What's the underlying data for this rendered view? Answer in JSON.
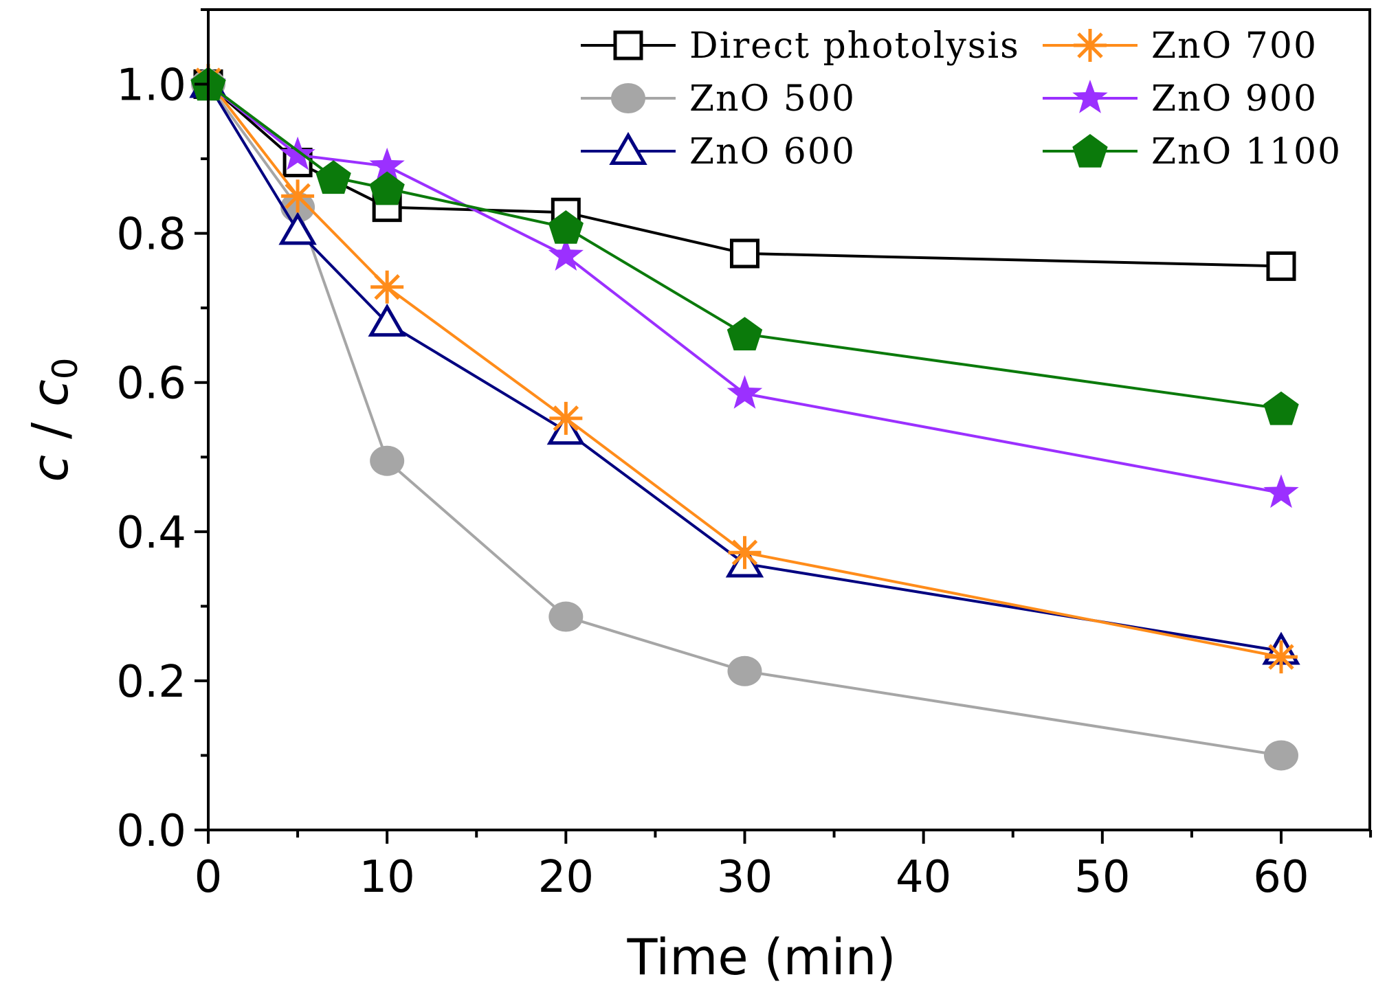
{
  "chart_data": {
    "type": "line",
    "title": "",
    "xlabel": "Time (min)",
    "ylabel_main": "c",
    "ylabel_sep": " / ",
    "ylabel_denom": "c",
    "ylabel_sub": "0",
    "xlim": [
      0,
      65
    ],
    "ylim": [
      0,
      1.1
    ],
    "x_ticks": [
      0,
      10,
      20,
      30,
      40,
      50,
      60
    ],
    "x_tick_labels": [
      "0",
      "10",
      "20",
      "30",
      "40",
      "50",
      "60"
    ],
    "y_ticks": [
      0.0,
      0.2,
      0.4,
      0.6,
      0.8,
      1.0
    ],
    "y_tick_labels": [
      "0.0",
      "0.2",
      "0.4",
      "0.6",
      "0.8",
      "1.0"
    ],
    "grid": false,
    "legend_position": "top-right",
    "series": [
      {
        "name": "Direct photolysis",
        "marker": "square-open",
        "color": "#000000",
        "x": [
          0,
          5,
          10,
          20,
          30,
          60
        ],
        "y": [
          1.0,
          0.895,
          0.835,
          0.828,
          0.773,
          0.756
        ]
      },
      {
        "name": "ZnO 500",
        "marker": "circle",
        "color": "#a6a6a6",
        "x": [
          0,
          5,
          10,
          20,
          30,
          60
        ],
        "y": [
          1.0,
          0.835,
          0.495,
          0.286,
          0.213,
          0.1
        ]
      },
      {
        "name": "ZnO 600",
        "marker": "triangle-open",
        "color": "#000080",
        "x": [
          0,
          5,
          10,
          20,
          30,
          60
        ],
        "y": [
          1.0,
          0.803,
          0.68,
          0.535,
          0.357,
          0.24
        ]
      },
      {
        "name": "ZnO 700",
        "marker": "asterisk",
        "color": "#ff8c1a",
        "x": [
          0,
          5,
          10,
          20,
          30,
          60
        ],
        "y": [
          1.005,
          0.85,
          0.728,
          0.552,
          0.372,
          0.232
        ]
      },
      {
        "name": "ZnO 900",
        "marker": "star",
        "color": "#9b30ff",
        "x": [
          0,
          5,
          10,
          20,
          30,
          60
        ],
        "y": [
          1.0,
          0.905,
          0.89,
          0.77,
          0.585,
          0.452
        ]
      },
      {
        "name": "ZnO 1100",
        "marker": "pentagon",
        "color": "#0b7a0b",
        "x": [
          0,
          7,
          10,
          20,
          30,
          60
        ],
        "y": [
          1.0,
          0.875,
          0.86,
          0.808,
          0.665,
          0.565
        ]
      }
    ]
  }
}
